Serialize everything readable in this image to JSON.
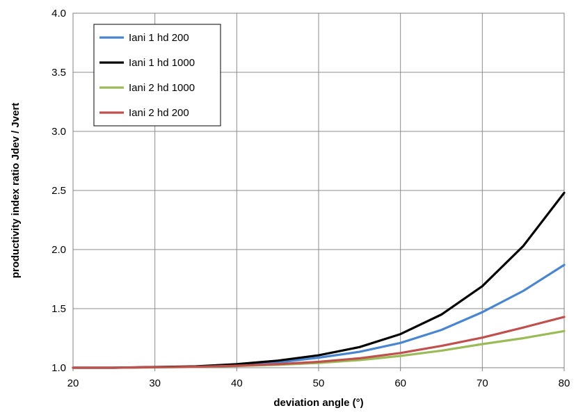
{
  "chart_data": {
    "type": "line",
    "title": "",
    "xlabel": "deviation angle (°)",
    "ylabel": "productivity index ratio Jdev / Jvert",
    "xlim": [
      20,
      80
    ],
    "ylim": [
      1.0,
      4.0
    ],
    "x_ticks": [
      "20",
      "30",
      "40",
      "50",
      "60",
      "70",
      "80"
    ],
    "y_ticks": [
      "1.0",
      "1.5",
      "2.0",
      "2.5",
      "3.0",
      "3.5",
      "4.0"
    ],
    "grid": true,
    "legend_position": "top-left",
    "x": [
      20,
      25,
      30,
      35,
      40,
      45,
      50,
      55,
      60,
      65,
      70,
      75,
      80
    ],
    "series": [
      {
        "name": "Iani 1 hd 200",
        "color": "#4a86d0",
        "values": [
          1.0,
          1.0,
          1.005,
          1.01,
          1.025,
          1.045,
          1.085,
          1.135,
          1.21,
          1.32,
          1.47,
          1.65,
          1.87
        ]
      },
      {
        "name": "Iani 1 hd 1000",
        "color": "#000000",
        "values": [
          1.0,
          1.0,
          1.006,
          1.012,
          1.03,
          1.06,
          1.105,
          1.175,
          1.285,
          1.45,
          1.69,
          2.03,
          2.48
        ]
      },
      {
        "name": "Iani 2 hd 1000",
        "color": "#9bbb59",
        "values": [
          1.0,
          1.0,
          1.003,
          1.007,
          1.015,
          1.025,
          1.04,
          1.065,
          1.1,
          1.145,
          1.2,
          1.25,
          1.31
        ]
      },
      {
        "name": "Iani 2 hd 200",
        "color": "#c0504d",
        "values": [
          1.0,
          1.0,
          1.004,
          1.008,
          1.017,
          1.03,
          1.05,
          1.08,
          1.125,
          1.185,
          1.255,
          1.34,
          1.43
        ]
      }
    ]
  }
}
